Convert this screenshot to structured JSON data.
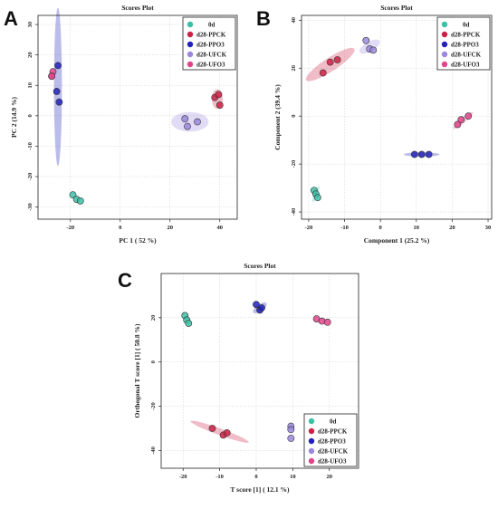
{
  "legend": [
    "0d",
    "d28-PPCK",
    "d28-PPO3",
    "d28-UFCK",
    "d28-UFO3"
  ],
  "colors": {
    "0d": "#3bbfa6",
    "d28-PPCK": "#cc2244",
    "d28-PPO3": "#2222bb",
    "d28-UFCK": "#9a88dd",
    "d28-UFO3": "#e0448a"
  },
  "chart_data": [
    {
      "id": "A",
      "panel_label": "A",
      "type": "scatter",
      "title": "Scores Plot",
      "xlabel": "PC 1 ( 52 %)",
      "ylabel": "PC 2 (14.9 %)",
      "xlim": [
        -33,
        47
      ],
      "ylim": [
        -34,
        33
      ],
      "xticks": [
        -20,
        0,
        20,
        40
      ],
      "yticks": [
        -30,
        -20,
        -10,
        0,
        10,
        20,
        30
      ],
      "legend_position": "top-right",
      "grid": true,
      "series": [
        {
          "name": "0d",
          "points": [
            [
              -19,
              -26
            ],
            [
              -17.5,
              -27.5
            ],
            [
              -16,
              -28
            ]
          ]
        },
        {
          "name": "d28-PPCK",
          "points": [
            [
              38,
              6
            ],
            [
              39.5,
              7
            ],
            [
              40,
              3.5
            ]
          ]
        },
        {
          "name": "d28-PPO3",
          "points": [
            [
              -25,
              16.5
            ],
            [
              -25.5,
              8
            ],
            [
              -24.5,
              4.5
            ]
          ]
        },
        {
          "name": "d28-UFCK",
          "points": [
            [
              26,
              -1
            ],
            [
              27,
              -3.5
            ],
            [
              31,
              -2
            ]
          ]
        },
        {
          "name": "d28-UFO3",
          "points": [
            [
              -27,
              14.5
            ],
            [
              -27.5,
              13
            ],
            [
              -27.5,
              13
            ]
          ]
        }
      ],
      "ellipses": [
        {
          "name": "d28-PPO3",
          "cx": -25,
          "cy": 9.5,
          "rx": 1.6,
          "ry": 26,
          "angle": 0
        },
        {
          "name": "d28-UFCK",
          "cx": 28,
          "cy": -2,
          "rx": 7.5,
          "ry": 3.2,
          "angle": 0
        },
        {
          "name": "d28-PPCK",
          "cx": 39,
          "cy": 5.5,
          "rx": 2.2,
          "ry": 3.2,
          "angle": 0
        }
      ]
    },
    {
      "id": "B",
      "panel_label": "B",
      "type": "scatter",
      "title": "Scores Plot",
      "xlabel": "Component 1 (25.2 %)",
      "ylabel": "Component 2 (39.4 %)",
      "xlim": [
        -22,
        31
      ],
      "ylim": [
        -43,
        42
      ],
      "xticks": [
        -20,
        -10,
        0,
        10,
        20,
        30
      ],
      "yticks": [
        -40,
        -20,
        0,
        20,
        40
      ],
      "legend_position": "top-right",
      "grid": true,
      "series": [
        {
          "name": "0d",
          "points": [
            [
              -18.5,
              -31
            ],
            [
              -18,
              -32.5
            ],
            [
              -17.5,
              -34
            ]
          ]
        },
        {
          "name": "d28-PPCK",
          "points": [
            [
              -16,
              18
            ],
            [
              -14,
              22.5
            ],
            [
              -12,
              23.5
            ]
          ]
        },
        {
          "name": "d28-PPO3",
          "points": [
            [
              9.5,
              -16
            ],
            [
              11.5,
              -16
            ],
            [
              13.5,
              -16
            ]
          ]
        },
        {
          "name": "d28-UFCK",
          "points": [
            [
              -4,
              31.5
            ],
            [
              -3,
              28
            ],
            [
              -2,
              27.5
            ]
          ]
        },
        {
          "name": "d28-UFO3",
          "points": [
            [
              21.5,
              -3.5
            ],
            [
              22.5,
              -1.5
            ],
            [
              24.5,
              0
            ]
          ]
        }
      ],
      "ellipses": [
        {
          "name": "d28-PPCK",
          "cx": -14,
          "cy": 21.5,
          "rx": 8,
          "ry": 2.8,
          "angle": -33
        },
        {
          "name": "d28-UFCK",
          "cx": -3,
          "cy": 29,
          "rx": 3.2,
          "ry": 2,
          "angle": -30
        },
        {
          "name": "d28-PPO3",
          "cx": 11.5,
          "cy": -16,
          "rx": 5,
          "ry": 0.9,
          "angle": 0
        },
        {
          "name": "d28-UFO3",
          "cx": 23,
          "cy": -1.8,
          "rx": 3.6,
          "ry": 1.1,
          "angle": -40
        },
        {
          "name": "0d",
          "cx": -18,
          "cy": -32.5,
          "rx": 2.4,
          "ry": 0.9,
          "angle": -70
        }
      ]
    },
    {
      "id": "C",
      "panel_label": "C",
      "type": "scatter",
      "title": "Scores Plot",
      "xlabel": "T score [1] ( 12.1 %)",
      "ylabel": "Orthogonal T score [1] ( 50.8 %)",
      "xlim": [
        -26,
        28
      ],
      "ylim": [
        -48,
        40
      ],
      "xticks": [
        -20,
        -10,
        0,
        10,
        20
      ],
      "yticks": [
        -40,
        -20,
        0,
        20
      ],
      "legend_position": "bottom-right",
      "grid": true,
      "series": [
        {
          "name": "0d",
          "points": [
            [
              -19.5,
              21
            ],
            [
              -19,
              19
            ],
            [
              -18.5,
              17.5
            ]
          ]
        },
        {
          "name": "d28-PPCK",
          "points": [
            [
              -12,
              -30
            ],
            [
              -9,
              -33
            ],
            [
              -8,
              -32
            ]
          ]
        },
        {
          "name": "d28-PPO3",
          "points": [
            [
              0,
              26
            ],
            [
              1,
              23.5
            ],
            [
              1.5,
              24.5
            ]
          ]
        },
        {
          "name": "d28-UFCK",
          "points": [
            [
              9.5,
              -29
            ],
            [
              9.5,
              -30.5
            ],
            [
              9.5,
              -34.5
            ]
          ]
        },
        {
          "name": "d28-UFO3",
          "points": [
            [
              16.5,
              19.5
            ],
            [
              18,
              18.5
            ],
            [
              19.5,
              18
            ]
          ]
        }
      ],
      "ellipses": [
        {
          "name": "d28-PPCK",
          "cx": -10,
          "cy": -31.5,
          "rx": 8.5,
          "ry": 1.5,
          "angle": 20
        },
        {
          "name": "d28-PPO3",
          "cx": 1,
          "cy": 24.5,
          "rx": 2.2,
          "ry": 1.6,
          "angle": -35
        }
      ]
    }
  ]
}
